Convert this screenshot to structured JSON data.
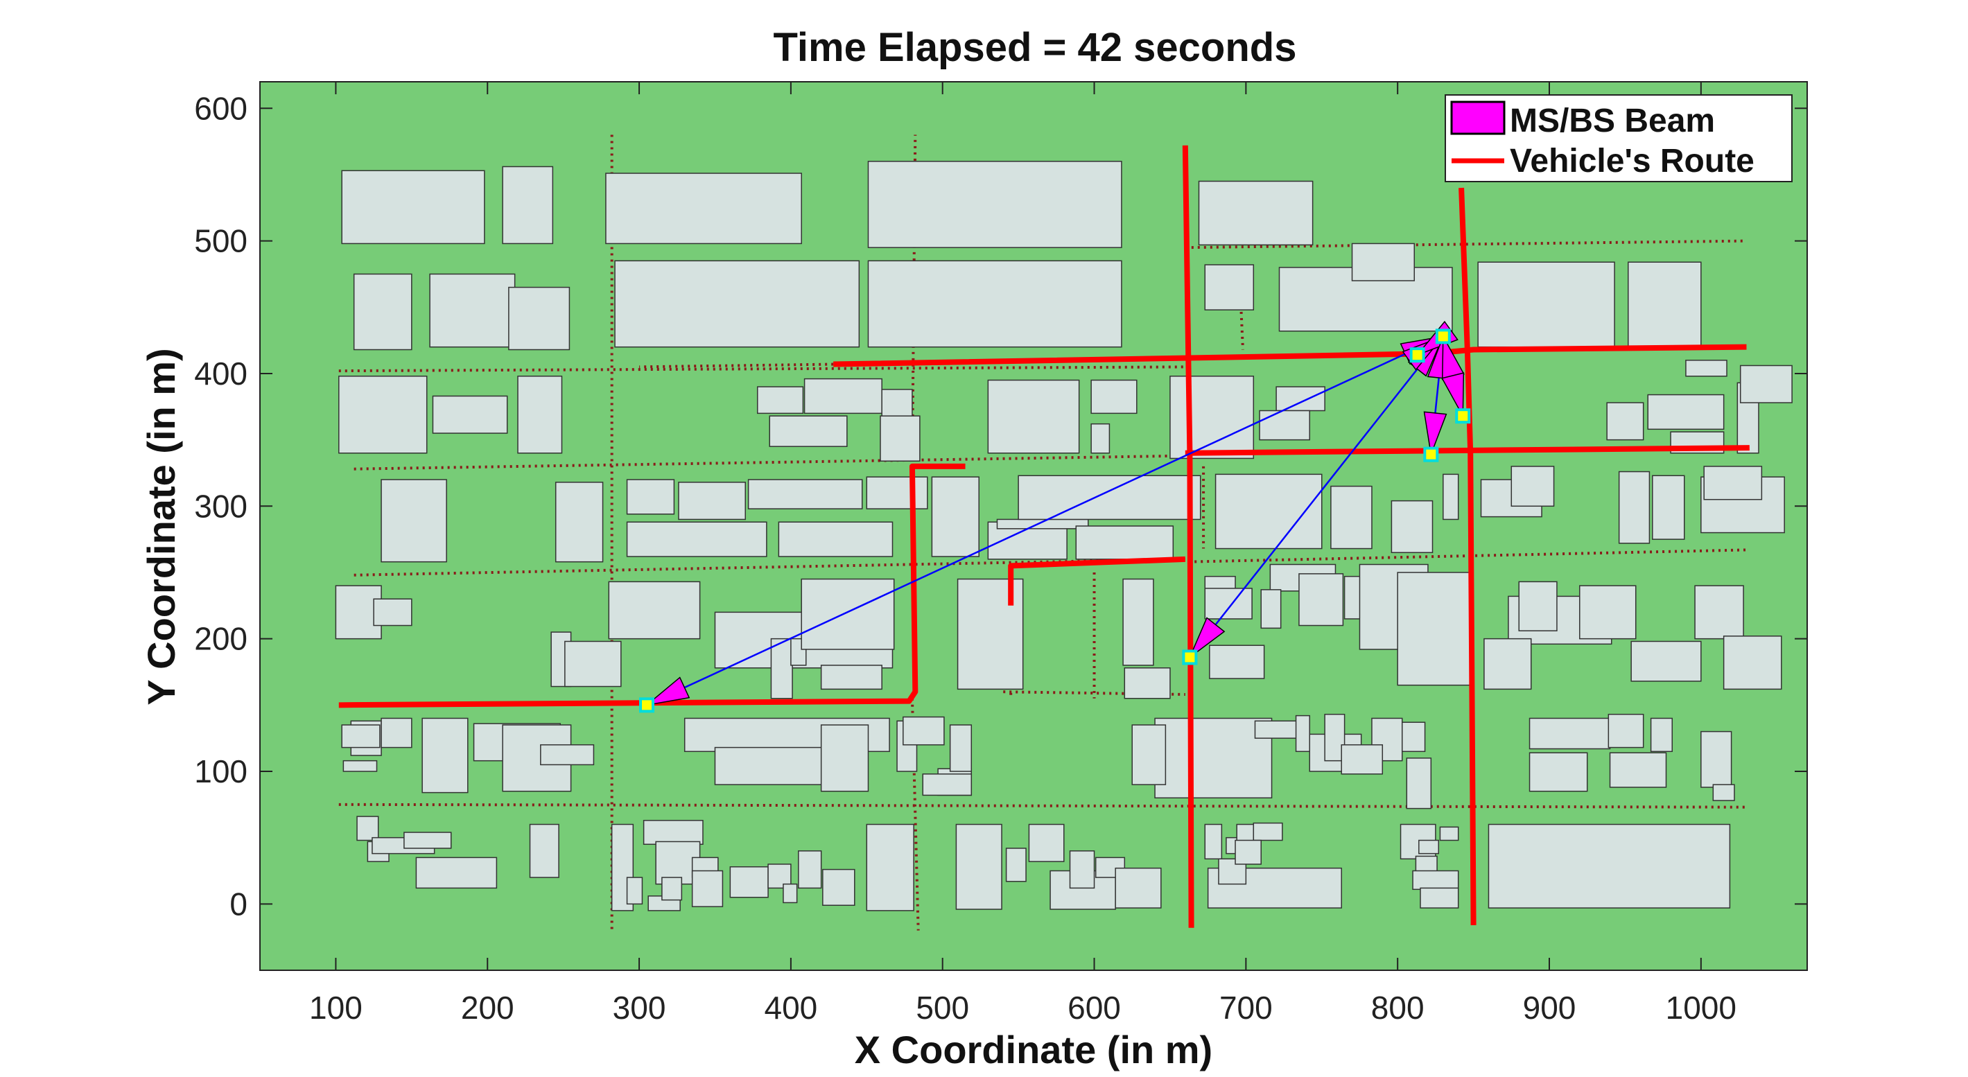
{
  "chart_data": {
    "type": "scatter",
    "title": "Time Elapsed = 42 seconds",
    "xlabel": "X Coordinate (in m)",
    "ylabel": "Y Coordinate (in m)",
    "xlim": [
      50,
      1070
    ],
    "ylim": [
      -50,
      620
    ],
    "xticks": [
      100,
      200,
      300,
      400,
      500,
      600,
      700,
      800,
      900,
      1000
    ],
    "yticks": [
      0,
      100,
      200,
      300,
      400,
      500,
      600
    ],
    "grid": false,
    "legend_position": "top-right",
    "legend": [
      {
        "label": "MS/BS Beam",
        "color": "#ff00ff",
        "kind": "patch"
      },
      {
        "label": "Vehicle's Route",
        "color": "#ff0000",
        "kind": "line"
      }
    ],
    "colors": {
      "ground": "#77cc77",
      "building": "#d6e2e0",
      "building_edge": "#333333",
      "route": "#ff0000",
      "road_dotted": "#8b1a1a",
      "link": "#0000ff",
      "beam": "#ff00ff",
      "station": "#ffff00",
      "station_edge": "#00dddd"
    },
    "base_station": {
      "x": 830,
      "y": 428
    },
    "mobile_stations": [
      {
        "x": 305,
        "y": 150
      },
      {
        "x": 663,
        "y": 186
      },
      {
        "x": 813,
        "y": 414
      },
      {
        "x": 822,
        "y": 339
      },
      {
        "x": 843,
        "y": 368
      }
    ],
    "routes": [
      [
        [
          102,
          150
        ],
        [
          478,
          153
        ],
        [
          482,
          160
        ],
        [
          480,
          330
        ],
        [
          515,
          330
        ]
      ],
      [
        [
          428,
          407
        ],
        [
          822,
          415
        ],
        [
          850,
          418
        ],
        [
          1030,
          420
        ]
      ],
      [
        [
          660,
          572
        ],
        [
          662,
          415
        ],
        [
          663,
          340
        ],
        [
          664,
          -18
        ]
      ],
      [
        [
          660,
          340
        ],
        [
          1032,
          344
        ]
      ],
      [
        [
          545,
          225
        ],
        [
          545,
          255
        ],
        [
          660,
          260
        ]
      ],
      [
        [
          842,
          540
        ],
        [
          846,
          418
        ],
        [
          848,
          340
        ],
        [
          850,
          -16
        ]
      ]
    ],
    "dotted_roads": [
      [
        [
          102,
          402
        ],
        [
          660,
          405
        ]
      ],
      [
        [
          428,
          407
        ],
        [
          300,
          405
        ]
      ],
      [
        [
          112,
          328
        ],
        [
          660,
          338
        ]
      ],
      [
        [
          112,
          248
        ],
        [
          660,
          260
        ]
      ],
      [
        [
          662,
          258
        ],
        [
          1030,
          267
        ]
      ],
      [
        [
          102,
          75
        ],
        [
          1030,
          73
        ]
      ],
      [
        [
          282,
          580
        ],
        [
          282,
          -20
        ]
      ],
      [
        [
          480,
          155
        ],
        [
          484,
          -20
        ]
      ],
      [
        [
          480,
          330
        ],
        [
          482,
          580
        ]
      ],
      [
        [
          545,
          225
        ],
        [
          545,
          155
        ]
      ],
      [
        [
          600,
          250
        ],
        [
          600,
          155
        ]
      ],
      [
        [
          672,
          330
        ],
        [
          672,
          268
        ]
      ],
      [
        [
          696,
          470
        ],
        [
          698,
          418
        ]
      ],
      [
        [
          660,
          495
        ],
        [
          1030,
          500
        ]
      ],
      [
        [
          540,
          160
        ],
        [
          660,
          158
        ]
      ]
    ],
    "buildings": [
      [
        104,
        498,
        198,
        553
      ],
      [
        210,
        498,
        243,
        556
      ],
      [
        278,
        498,
        407,
        551
      ],
      [
        451,
        495,
        618,
        560
      ],
      [
        669,
        497,
        744,
        545
      ],
      [
        112,
        418,
        150,
        475
      ],
      [
        162,
        420,
        218,
        475
      ],
      [
        214,
        418,
        254,
        465
      ],
      [
        284,
        420,
        445,
        485
      ],
      [
        451,
        420,
        618,
        485
      ],
      [
        673,
        448,
        705,
        482
      ],
      [
        722,
        432,
        836,
        480
      ],
      [
        853,
        420,
        943,
        484
      ],
      [
        952,
        420,
        1000,
        484
      ],
      [
        102,
        340,
        160,
        398
      ],
      [
        164,
        355,
        213,
        383
      ],
      [
        220,
        340,
        249,
        398
      ],
      [
        378,
        370,
        408,
        390
      ],
      [
        409,
        370,
        460,
        396
      ],
      [
        460,
        362,
        480,
        388
      ],
      [
        386,
        345,
        437,
        368
      ],
      [
        459,
        334,
        485,
        368
      ],
      [
        530,
        340,
        590,
        395
      ],
      [
        598,
        370,
        628,
        395
      ],
      [
        598,
        340,
        610,
        362
      ],
      [
        650,
        336,
        705,
        398
      ],
      [
        770,
        470,
        811,
        498
      ],
      [
        720,
        372,
        752,
        390
      ],
      [
        709,
        350,
        742,
        372
      ],
      [
        990,
        410,
        1017,
        398
      ],
      [
        938,
        350,
        962,
        378
      ],
      [
        965,
        358,
        1015,
        384
      ],
      [
        980,
        340,
        1015,
        356
      ],
      [
        1024,
        340,
        1038,
        393
      ],
      [
        1026,
        378,
        1060,
        406
      ],
      [
        130,
        258,
        173,
        320
      ],
      [
        245,
        258,
        276,
        318
      ],
      [
        292,
        294,
        323,
        320
      ],
      [
        326,
        290,
        370,
        318
      ],
      [
        372,
        298,
        447,
        320
      ],
      [
        450,
        298,
        490,
        322
      ],
      [
        292,
        262,
        384,
        288
      ],
      [
        392,
        262,
        467,
        288
      ],
      [
        493,
        262,
        524,
        322
      ],
      [
        530,
        260,
        582,
        288
      ],
      [
        536,
        283,
        596,
        290
      ],
      [
        550,
        290,
        670,
        323
      ],
      [
        588,
        260,
        652,
        285
      ],
      [
        680,
        268,
        750,
        324
      ],
      [
        756,
        268,
        783,
        315
      ],
      [
        796,
        265,
        823,
        304
      ],
      [
        830,
        290,
        840,
        324
      ],
      [
        855,
        292,
        895,
        320
      ],
      [
        875,
        300,
        903,
        330
      ],
      [
        946,
        272,
        966,
        326
      ],
      [
        968,
        275,
        989,
        323
      ],
      [
        1000,
        280,
        1055,
        322
      ],
      [
        1002,
        305,
        1040,
        330
      ],
      [
        100,
        200,
        130,
        240
      ],
      [
        125,
        210,
        150,
        230
      ],
      [
        280,
        200,
        340,
        243
      ],
      [
        350,
        178,
        467,
        220
      ],
      [
        387,
        155,
        401,
        200
      ],
      [
        400,
        180,
        410,
        200
      ],
      [
        407,
        192,
        468,
        245
      ],
      [
        420,
        162,
        460,
        180
      ],
      [
        242,
        164,
        255,
        205
      ],
      [
        251,
        164,
        288,
        198
      ],
      [
        510,
        162,
        553,
        245
      ],
      [
        619,
        180,
        639,
        245
      ],
      [
        620,
        155,
        650,
        178
      ],
      [
        673,
        237,
        693,
        247
      ],
      [
        673,
        215,
        704,
        238
      ],
      [
        676,
        170,
        712,
        195
      ],
      [
        716,
        236,
        759,
        256
      ],
      [
        710,
        208,
        723,
        237
      ],
      [
        735,
        210,
        764,
        249
      ],
      [
        765,
        215,
        790,
        247
      ],
      [
        775,
        192,
        820,
        256
      ],
      [
        800,
        165,
        848,
        250
      ],
      [
        873,
        196,
        941,
        232
      ],
      [
        880,
        206,
        905,
        243
      ],
      [
        920,
        200,
        957,
        240
      ],
      [
        954,
        168,
        1000,
        198
      ],
      [
        996,
        200,
        1028,
        240
      ],
      [
        1015,
        162,
        1053,
        202
      ],
      [
        857,
        162,
        888,
        200
      ],
      [
        110,
        112,
        130,
        138
      ],
      [
        104,
        118,
        129,
        135
      ],
      [
        105,
        100,
        127,
        108
      ],
      [
        130,
        118,
        150,
        140
      ],
      [
        157,
        84,
        187,
        140
      ],
      [
        191,
        108,
        248,
        136
      ],
      [
        210,
        85,
        255,
        135
      ],
      [
        235,
        105,
        270,
        120
      ],
      [
        330,
        115,
        465,
        140
      ],
      [
        350,
        90,
        430,
        118
      ],
      [
        420,
        85,
        451,
        135
      ],
      [
        470,
        100,
        483,
        138
      ],
      [
        474,
        120,
        501,
        141
      ],
      [
        497,
        82,
        519,
        102
      ],
      [
        505,
        100,
        519,
        135
      ],
      [
        487,
        82,
        519,
        98
      ],
      [
        640,
        80,
        717,
        140
      ],
      [
        625,
        90,
        647,
        135
      ],
      [
        706,
        125,
        740,
        138
      ],
      [
        742,
        115,
        733,
        142
      ],
      [
        742,
        100,
        776,
        128
      ],
      [
        752,
        108,
        765,
        143
      ],
      [
        783,
        108,
        803,
        140
      ],
      [
        763,
        98,
        790,
        120
      ],
      [
        803,
        115,
        818,
        137
      ],
      [
        806,
        72,
        822,
        110
      ],
      [
        887,
        117,
        940,
        140
      ],
      [
        887,
        85,
        925,
        114
      ],
      [
        939,
        118,
        962,
        143
      ],
      [
        967,
        115,
        981,
        140
      ],
      [
        940,
        88,
        977,
        114
      ],
      [
        1000,
        88,
        1020,
        130
      ],
      [
        1008,
        78,
        1022,
        90
      ],
      [
        114,
        48,
        128,
        66
      ],
      [
        121,
        32,
        135,
        47
      ],
      [
        124,
        38,
        165,
        50
      ],
      [
        145,
        42,
        176,
        54
      ],
      [
        153,
        12,
        206,
        35
      ],
      [
        228,
        20,
        247,
        60
      ],
      [
        282,
        -5,
        296,
        60
      ],
      [
        303,
        45,
        342,
        63
      ],
      [
        311,
        15,
        340,
        47
      ],
      [
        292,
        0,
        302,
        20
      ],
      [
        306,
        -5,
        327,
        6
      ],
      [
        315,
        3,
        328,
        20
      ],
      [
        335,
        20,
        352,
        35
      ],
      [
        335,
        -2,
        355,
        25
      ],
      [
        360,
        5,
        385,
        28
      ],
      [
        385,
        12,
        400,
        30
      ],
      [
        395,
        1,
        404,
        15
      ],
      [
        405,
        12,
        420,
        40
      ],
      [
        421,
        -1,
        442,
        26
      ],
      [
        450,
        -5,
        481,
        60
      ],
      [
        509,
        -4,
        539,
        60
      ],
      [
        542,
        17,
        555,
        42
      ],
      [
        557,
        32,
        580,
        60
      ],
      [
        571,
        -4,
        614,
        25
      ],
      [
        584,
        12,
        600,
        40
      ],
      [
        601,
        20,
        620,
        35
      ],
      [
        614,
        -3,
        644,
        27
      ],
      [
        673,
        34,
        684,
        60
      ],
      [
        687,
        38,
        694,
        50
      ],
      [
        694,
        43,
        705,
        60
      ],
      [
        705,
        48,
        724,
        61
      ],
      [
        675,
        -3,
        763,
        27
      ],
      [
        682,
        15,
        700,
        34
      ],
      [
        693,
        30,
        710,
        48
      ],
      [
        802,
        34,
        825,
        60
      ],
      [
        812,
        12,
        826,
        36
      ],
      [
        814,
        38,
        827,
        48
      ],
      [
        828,
        48,
        840,
        58
      ],
      [
        810,
        11,
        840,
        25
      ],
      [
        815,
        -3,
        840,
        12
      ],
      [
        860,
        -3,
        1019,
        60
      ]
    ]
  }
}
